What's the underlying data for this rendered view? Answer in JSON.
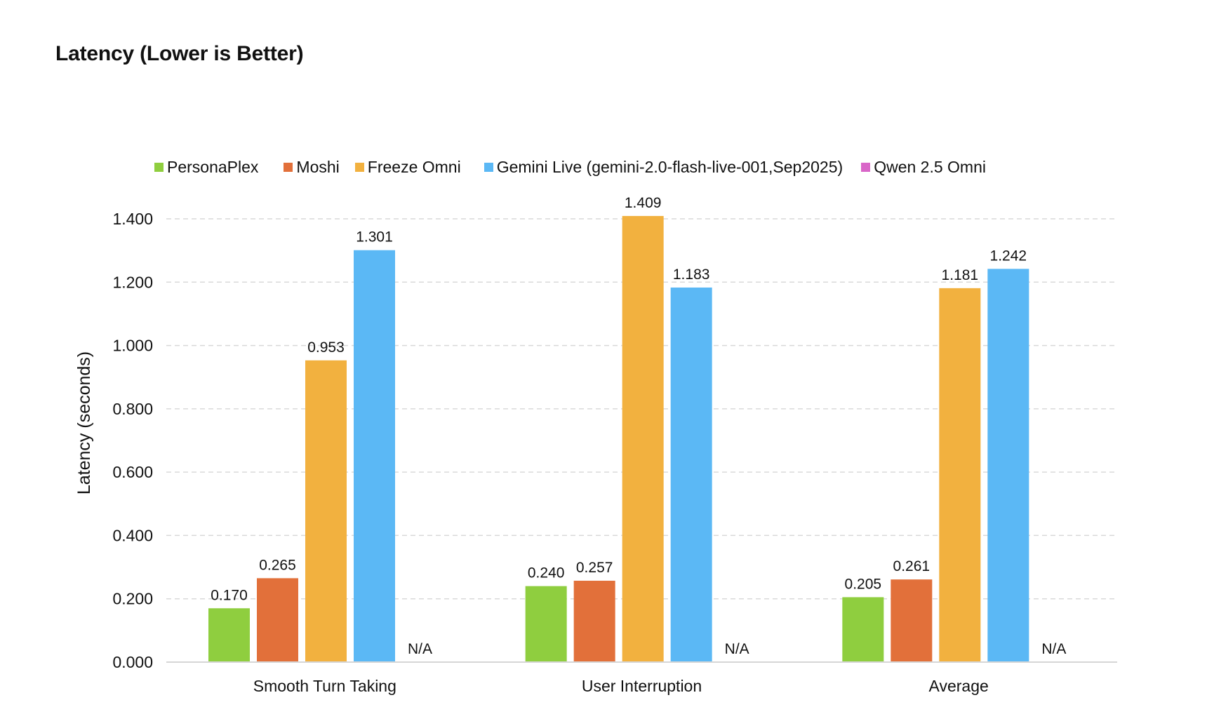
{
  "chart_data": {
    "type": "bar",
    "title": "Latency (Lower is Better)",
    "xlabel": "",
    "ylabel": "Latency (seconds)",
    "ylim": [
      0,
      1.4
    ],
    "yticks": [
      "0.000",
      "0.200",
      "0.400",
      "0.600",
      "0.800",
      "1.000",
      "1.200",
      "1.400"
    ],
    "ytick_values": [
      0,
      0.2,
      0.4,
      0.6,
      0.8,
      1.0,
      1.2,
      1.4
    ],
    "grid": true,
    "legend_position": "top",
    "categories": [
      "Smooth Turn Taking",
      "User Interruption",
      "Average"
    ],
    "series": [
      {
        "name": "PersonaPlex",
        "color": "#8fce3f",
        "values": [
          0.17,
          0.24,
          0.205
        ],
        "labels": [
          "0.170",
          "0.240",
          "0.205"
        ]
      },
      {
        "name": "Moshi",
        "color": "#e2703a",
        "values": [
          0.265,
          0.257,
          0.261
        ],
        "labels": [
          "0.265",
          "0.257",
          "0.261"
        ]
      },
      {
        "name": "Freeze Omni",
        "color": "#f2b13f",
        "values": [
          0.953,
          1.409,
          1.181
        ],
        "labels": [
          "0.953",
          "1.409",
          "1.181"
        ]
      },
      {
        "name": "Gemini Live (gemini-2.0-flash-live-001,Sep2025)",
        "color": "#5bb8f5",
        "values": [
          1.301,
          1.183,
          1.242
        ],
        "labels": [
          "1.301",
          "1.183",
          "1.242"
        ]
      },
      {
        "name": "Qwen 2.5 Omni",
        "color": "#d966c8",
        "values": [
          null,
          null,
          null
        ],
        "labels": [
          "N/A",
          "N/A",
          "N/A"
        ]
      }
    ]
  }
}
